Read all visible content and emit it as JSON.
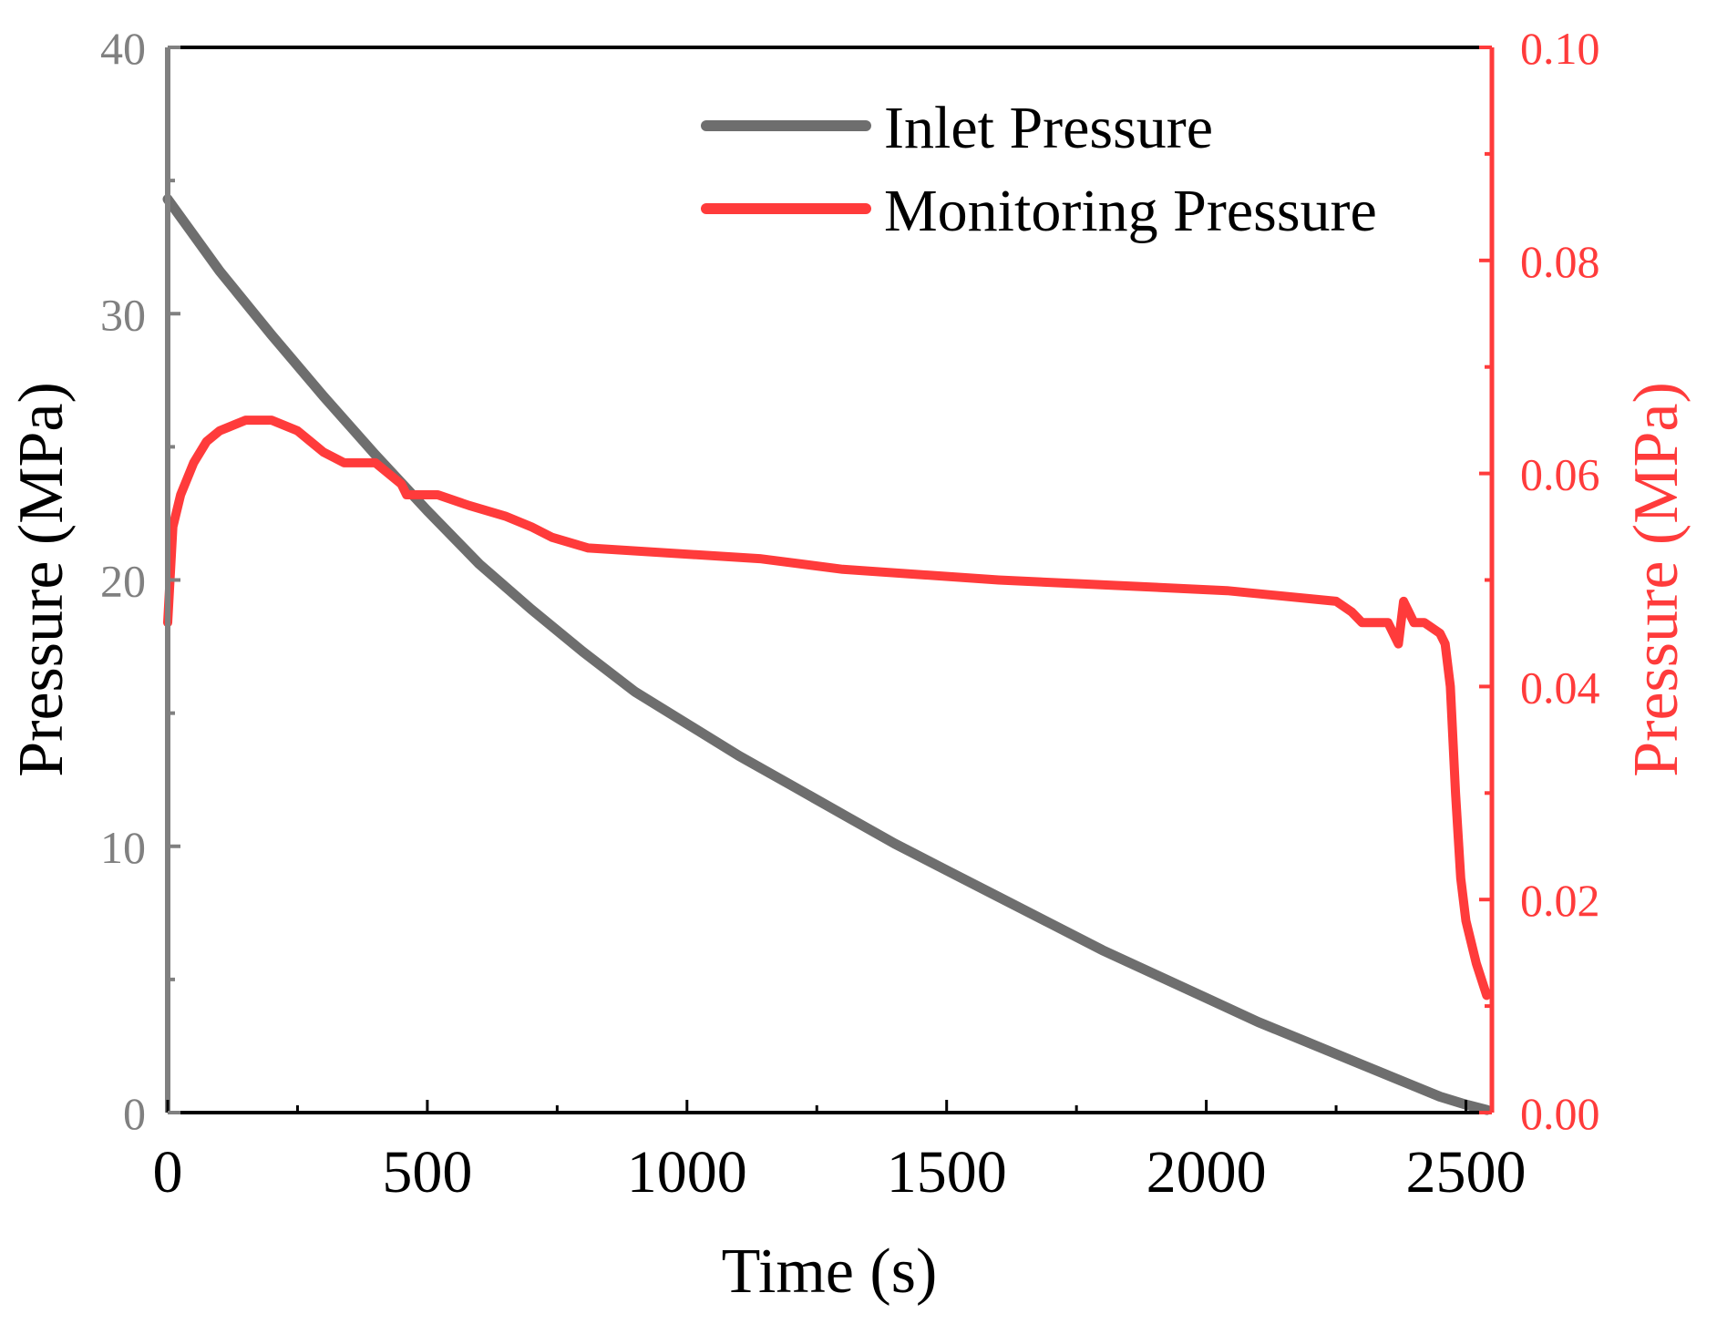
{
  "chart_data": {
    "type": "line",
    "xlabel": "Time (s)",
    "ylabel_left": "Pressure (MPa)",
    "ylabel_right": "Pressure (MPa)",
    "xlim": [
      0,
      2550
    ],
    "ylim_left": [
      0,
      40
    ],
    "ylim_right": [
      0,
      0.1
    ],
    "x_ticks": [
      0,
      500,
      1000,
      1500,
      2000,
      2500
    ],
    "x_tick_labels": [
      "0",
      "500",
      "1000",
      "1500",
      "2000",
      "2500"
    ],
    "y_left_ticks": [
      0,
      10,
      20,
      30,
      40
    ],
    "y_left_tick_labels": [
      "0",
      "10",
      "20",
      "30",
      "40"
    ],
    "y_right_ticks": [
      0,
      0.02,
      0.04,
      0.06,
      0.08,
      0.1
    ],
    "y_right_tick_labels": [
      "0.00",
      "0.02",
      "0.04",
      "0.06",
      "0.08",
      "0.10"
    ],
    "grid": false,
    "legend_position": "top-right",
    "colors": {
      "inlet": "#6e6e6e",
      "monitoring": "#ff3b3b",
      "left_axis": "#808080",
      "right_axis": "#ff3b3b",
      "frame": "#000000"
    },
    "series": [
      {
        "name": "Inlet Pressure",
        "axis": "left",
        "x": [
          0,
          100,
          200,
          300,
          400,
          500,
          600,
          700,
          800,
          900,
          1000,
          1100,
          1200,
          1300,
          1400,
          1500,
          1600,
          1700,
          1800,
          1900,
          2000,
          2100,
          2200,
          2300,
          2400,
          2450,
          2500,
          2540
        ],
        "values": [
          34.3,
          31.6,
          29.2,
          26.9,
          24.7,
          22.6,
          20.6,
          18.9,
          17.3,
          15.8,
          14.6,
          13.4,
          12.3,
          11.2,
          10.1,
          9.1,
          8.1,
          7.1,
          6.1,
          5.2,
          4.3,
          3.4,
          2.6,
          1.8,
          1.0,
          0.6,
          0.3,
          0.1
        ]
      },
      {
        "name": "Monitoring Pressure",
        "axis": "right",
        "x": [
          0,
          10,
          25,
          50,
          75,
          100,
          150,
          200,
          250,
          275,
          300,
          340,
          380,
          400,
          450,
          460,
          520,
          580,
          650,
          700,
          740,
          810,
          1140,
          1300,
          1600,
          2040,
          2250,
          2280,
          2300,
          2350,
          2370,
          2380,
          2390,
          2400,
          2420,
          2450,
          2460,
          2470,
          2480,
          2490,
          2500,
          2520,
          2540
        ],
        "values": [
          0.046,
          0.055,
          0.058,
          0.061,
          0.063,
          0.064,
          0.065,
          0.065,
          0.064,
          0.063,
          0.062,
          0.061,
          0.061,
          0.061,
          0.059,
          0.058,
          0.058,
          0.057,
          0.056,
          0.055,
          0.054,
          0.053,
          0.052,
          0.051,
          0.05,
          0.049,
          0.048,
          0.047,
          0.046,
          0.046,
          0.044,
          0.048,
          0.047,
          0.046,
          0.046,
          0.045,
          0.044,
          0.04,
          0.03,
          0.022,
          0.018,
          0.014,
          0.011
        ]
      }
    ]
  }
}
